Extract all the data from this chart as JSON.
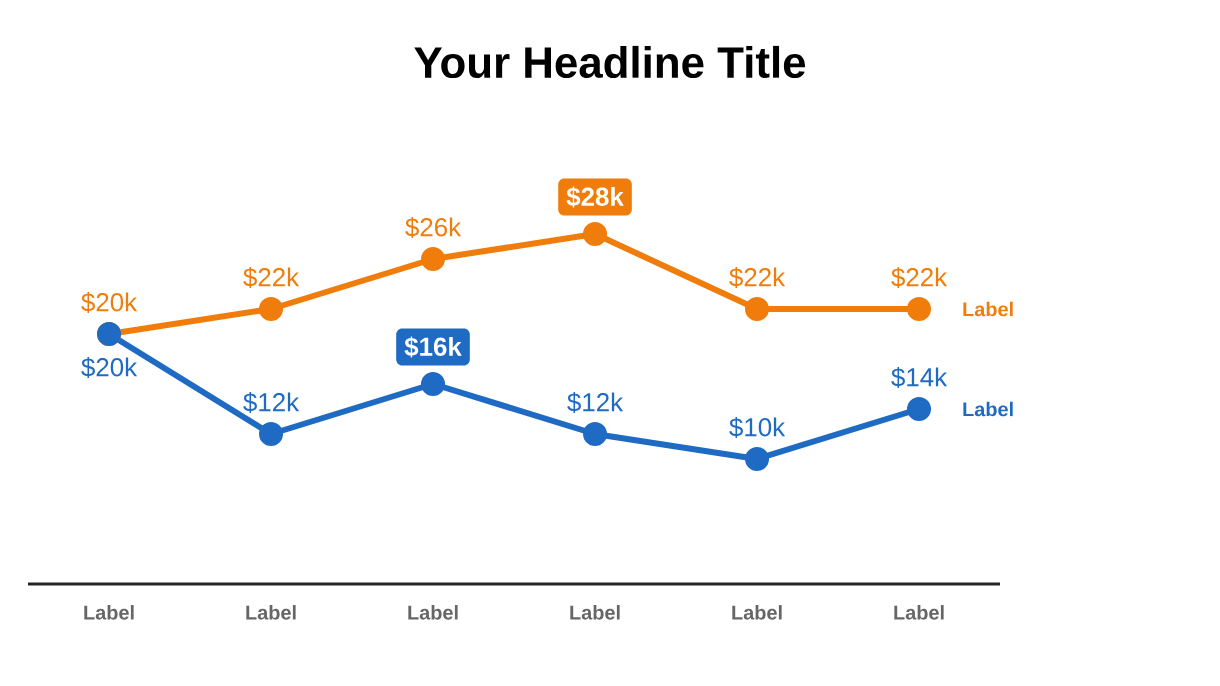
{
  "chart_data": {
    "type": "line",
    "title": "Your Headline Title",
    "categories": [
      "Label",
      "Label",
      "Label",
      "Label",
      "Label",
      "Label"
    ],
    "marker": "circle",
    "line_style": "solid",
    "legend": false,
    "series": [
      {
        "name": "Label",
        "color": "#f07d0b",
        "values": [
          20,
          22,
          26,
          28,
          22,
          22
        ],
        "value_labels": [
          "$20k",
          "$22k",
          "$26k",
          "$28k",
          "$22k",
          "$22k"
        ]
      },
      {
        "name": "Label",
        "color": "#1f6bc4",
        "values": [
          20,
          12,
          16,
          12,
          10,
          14
        ],
        "value_labels": [
          "$20k",
          "$12k",
          "$16k",
          "$12k",
          "$10k",
          "$14k"
        ]
      }
    ]
  }
}
